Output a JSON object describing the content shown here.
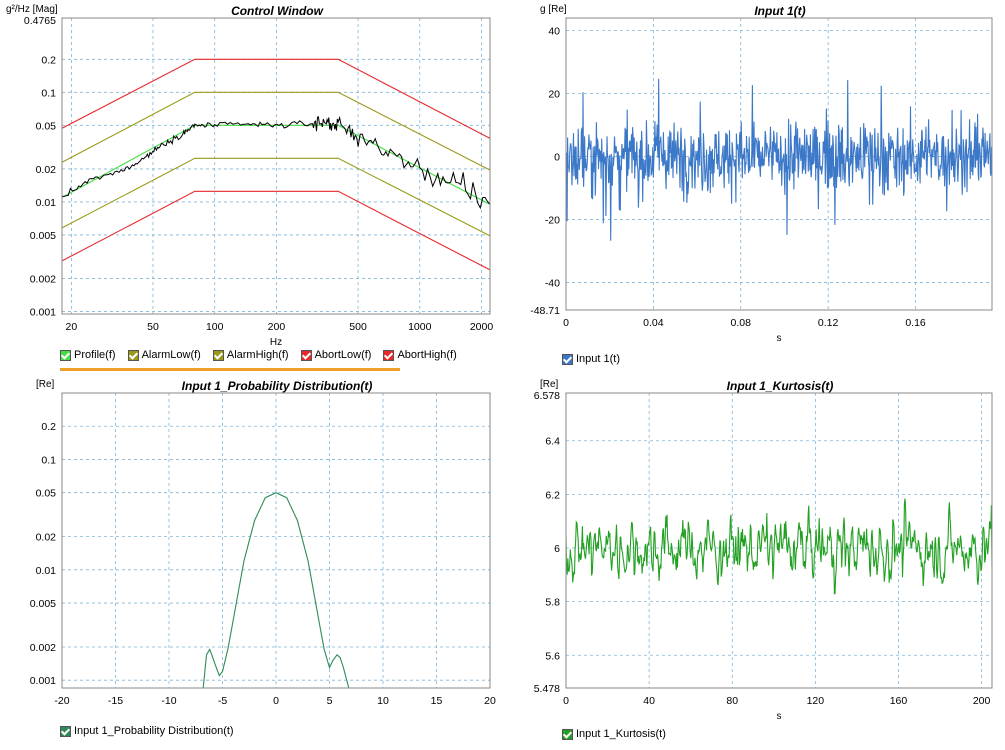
{
  "colors": {
    "profile": "#44dd44",
    "alarm": "#9a9a18",
    "abort": "#e8282a",
    "measured": "#000000",
    "input": "#3c78c8",
    "prob": "#2e8b57",
    "kurt": "#22a022"
  },
  "chart_data": [
    {
      "type": "line",
      "title": "Control Window",
      "ylabel": "g²/Hz [Mag]",
      "xlabel": "Hz",
      "x_scale": "log",
      "y_scale": "log",
      "xlim": [
        18,
        2200
      ],
      "ylim": [
        0.00095,
        0.4765
      ],
      "y_top_label": "0.4765",
      "xtick_labels": [
        "20",
        "50",
        "100",
        "200",
        "500",
        "1000",
        "2000"
      ],
      "ytick_labels": [
        "0.001",
        "0.002",
        "0.005",
        "0.01",
        "0.02",
        "0.05",
        "0.1",
        "0.2"
      ],
      "series": [
        {
          "name": "Profile(f)",
          "key": "profile",
          "x": [
            18,
            80,
            400,
            2200
          ],
          "y": [
            0.011,
            0.05,
            0.05,
            0.0095
          ]
        },
        {
          "name": "AlarmLow(f)",
          "key": "alarm",
          "x": [
            18,
            80,
            400,
            2200
          ],
          "y": [
            0.0058,
            0.025,
            0.025,
            0.0049
          ]
        },
        {
          "name": "AlarmHigh(f)",
          "key": "alarm",
          "x": [
            18,
            80,
            400,
            2200
          ],
          "y": [
            0.023,
            0.1,
            0.1,
            0.0195
          ]
        },
        {
          "name": "AbortLow(f)",
          "key": "abort",
          "x": [
            18,
            80,
            400,
            2200
          ],
          "y": [
            0.0029,
            0.0125,
            0.0125,
            0.0024
          ]
        },
        {
          "name": "AbortHigh(f)",
          "key": "abort",
          "x": [
            18,
            80,
            400,
            2200
          ],
          "y": [
            0.047,
            0.2,
            0.2,
            0.038
          ]
        },
        {
          "name": "",
          "key": "measured",
          "x": [
            18,
            25,
            35,
            45,
            55,
            70,
            80,
            100,
            150,
            200,
            300,
            350,
            400,
            500,
            700,
            1000,
            1500,
            2200
          ],
          "y": [
            0.011,
            0.016,
            0.019,
            0.025,
            0.033,
            0.042,
            0.05,
            0.05,
            0.051,
            0.05,
            0.052,
            0.054,
            0.05,
            0.04,
            0.028,
            0.02,
            0.014,
            0.0095
          ]
        }
      ],
      "legend": [
        "Profile(f)",
        "AlarmLow(f)",
        "AlarmHigh(f)",
        "AbortLow(f)",
        "AbortHigh(f)"
      ],
      "grid": true
    },
    {
      "type": "line",
      "title": "Input 1(t)",
      "ylabel": "g [Re]",
      "xlabel": "s",
      "xlim": [
        0,
        0.195
      ],
      "ylim": [
        -48.71,
        44
      ],
      "y_bottom_label": "-48.71",
      "xtick_labels": [
        "0",
        "0.04",
        "0.08",
        "0.12",
        "0.16"
      ],
      "ytick_labels": [
        "-40",
        "-20",
        "0",
        "20",
        "40"
      ],
      "series": [
        {
          "name": "Input 1(t)",
          "key": "input",
          "noise": {
            "sd": 6,
            "peak": 27,
            "samples": 800
          }
        }
      ],
      "legend": [
        "Input 1(t)"
      ],
      "grid": true
    },
    {
      "type": "line",
      "title": "Input 1_Probability Distribution(t)",
      "ylabel": "[Re]",
      "xlabel": "",
      "y_scale": "log",
      "xlim": [
        -20,
        20
      ],
      "ylim": [
        0.00085,
        0.4
      ],
      "xtick_labels": [
        "-20",
        "-15",
        "-10",
        "-5",
        "0",
        "5",
        "10",
        "15",
        "20"
      ],
      "ytick_labels": [
        "0.001",
        "0.002",
        "0.005",
        "0.01",
        "0.02",
        "0.05",
        "0.1",
        "0.2"
      ],
      "series": [
        {
          "name": "Input 1_Probability Distribution(t)",
          "key": "prob",
          "x": [
            -6.8,
            -6.5,
            -6.2,
            -6,
            -5.7,
            -5.3,
            -5,
            -4.5,
            -4,
            -3,
            -2,
            -1,
            0,
            1,
            2,
            3,
            4,
            4.5,
            5,
            5.3,
            5.7,
            6,
            6.3,
            6.8
          ],
          "y": [
            0.00085,
            0.0017,
            0.0019,
            0.0017,
            0.0014,
            0.0011,
            0.0012,
            0.0019,
            0.0035,
            0.012,
            0.028,
            0.045,
            0.05,
            0.045,
            0.028,
            0.012,
            0.0035,
            0.0019,
            0.0013,
            0.0015,
            0.0017,
            0.0016,
            0.0013,
            0.00085
          ]
        }
      ],
      "legend": [
        "Input 1_Probability Distribution(t)"
      ],
      "grid": true
    },
    {
      "type": "line",
      "title": "Input 1_Kurtosis(t)",
      "ylabel": "[Re]",
      "xlabel": "s",
      "xlim": [
        0,
        205
      ],
      "ylim": [
        5.478,
        6.578
      ],
      "y_top_label": "6.578",
      "y_bottom_label": "5.478",
      "xtick_labels": [
        "0",
        "40",
        "80",
        "120",
        "160",
        "200"
      ],
      "ytick_labels": [
        "5.6",
        "5.8",
        "6",
        "6.2",
        "6.4"
      ],
      "series": [
        {
          "name": "Input 1_Kurtosis(t)",
          "key": "kurt",
          "noise": {
            "mean": 6.0,
            "sd": 0.12,
            "samples": 700
          }
        }
      ],
      "legend": [
        "Input 1_Kurtosis(t)"
      ],
      "grid": true
    }
  ]
}
